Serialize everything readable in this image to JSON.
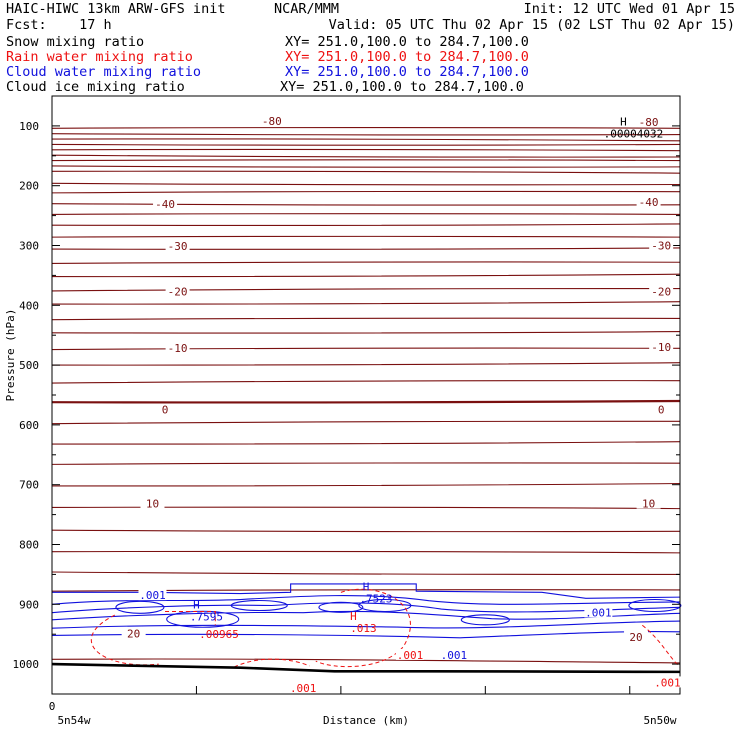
{
  "header": {
    "model": "HAIC-HIWC 13km ARW-GFS init",
    "org": "NCAR/MMM",
    "init": "Init: 12 UTC Wed 01 Apr 15",
    "fcst": "Fcst:    17 h",
    "valid": "Valid: 05 UTC Thu 02 Apr 15 (02 LST Thu 02 Apr 15)"
  },
  "fields": [
    {
      "label": "Snow mixing ratio",
      "xy": "XY= 251.0,100.0 to 284.7,100.0",
      "color": "#000000"
    },
    {
      "label": "Rain water mixing ratio",
      "xy": "XY= 251.0,100.0 to 284.7,100.0",
      "color": "#ee1111"
    },
    {
      "label": "Cloud water mixing ratio",
      "xy": "XY= 251.0,100.0 to 284.7,100.0",
      "color": "#1111dd"
    },
    {
      "label": "Cloud ice mixing ratio",
      "xy": "XY= 251.0,100.0 to 284.7,100.0",
      "color": "#000000"
    }
  ],
  "colors": {
    "temperature": "#7a1010",
    "cloud_water": "#1111dd",
    "rain_water": "#ee1111",
    "terrain": "#000000"
  },
  "chart_data": {
    "type": "line",
    "title": "",
    "ylabel": "Pressure (hPa)",
    "xlabel": "Distance (km)",
    "y_ticks": [
      100,
      200,
      300,
      400,
      500,
      600,
      700,
      800,
      900,
      1000
    ],
    "y_tick_labels": [
      "100",
      "200",
      "300",
      "400",
      "500",
      "600",
      "700",
      "800",
      "900",
      "1000"
    ],
    "ylim": [
      1050,
      50
    ],
    "x_tick_labels": [
      "0"
    ],
    "x_end_labels": [
      "5n54w",
      "5n50w"
    ],
    "temperature_contours": {
      "labels": [
        {
          "text": "-80",
          "x": 0.35,
          "p": 95
        },
        {
          "text": "-80",
          "x": 0.95,
          "p": 97
        },
        {
          "text": "-40",
          "x": 0.18,
          "p": 234
        },
        {
          "text": "-40",
          "x": 0.95,
          "p": 231
        },
        {
          "text": "-30",
          "x": 0.2,
          "p": 304
        },
        {
          "text": "-30",
          "x": 0.97,
          "p": 303
        },
        {
          "text": "-20",
          "x": 0.2,
          "p": 380
        },
        {
          "text": "-20",
          "x": 0.97,
          "p": 380
        },
        {
          "text": "-10",
          "x": 0.2,
          "p": 475
        },
        {
          "text": "-10",
          "x": 0.97,
          "p": 473
        },
        {
          "text": "0",
          "x": 0.18,
          "p": 578
        },
        {
          "text": "0",
          "x": 0.97,
          "p": 578
        },
        {
          "text": "10",
          "x": 0.16,
          "p": 735
        },
        {
          "text": "10",
          "x": 0.95,
          "p": 735
        },
        {
          "text": "20",
          "x": 0.13,
          "p": 952
        },
        {
          "text": "20",
          "x": 0.93,
          "p": 958
        }
      ]
    },
    "maxima": [
      {
        "letter": "H",
        "value": ".00004032",
        "x": 0.91,
        "p": 113,
        "color": "#000000"
      },
      {
        "letter": "H",
        "value": ".7595",
        "x": 0.23,
        "p": 920,
        "color": "#1111dd"
      },
      {
        "letter": "H",
        "value": ".7523",
        "x": 0.5,
        "p": 890,
        "color": "#1111dd"
      },
      {
        "letter": "",
        "value": ".00965",
        "x": 0.25,
        "p": 950,
        "color": "#ee1111"
      },
      {
        "letter": "H",
        "value": ".013",
        "x": 0.48,
        "p": 940,
        "color": "#ee1111"
      }
    ],
    "cloud_water_labels": [
      {
        "text": ".001",
        "x": 0.16,
        "p": 888
      },
      {
        "text": ".001",
        "x": 0.87,
        "p": 917
      },
      {
        "text": ".001",
        "x": 0.64,
        "p": 988
      }
    ],
    "rain_water_labels": [
      {
        "text": ".001",
        "x": 0.57,
        "p": 988
      },
      {
        "text": ".001",
        "x": 0.4,
        "p": 1043
      },
      {
        "text": ".001",
        "x": 0.98,
        "p": 1034
      }
    ]
  }
}
